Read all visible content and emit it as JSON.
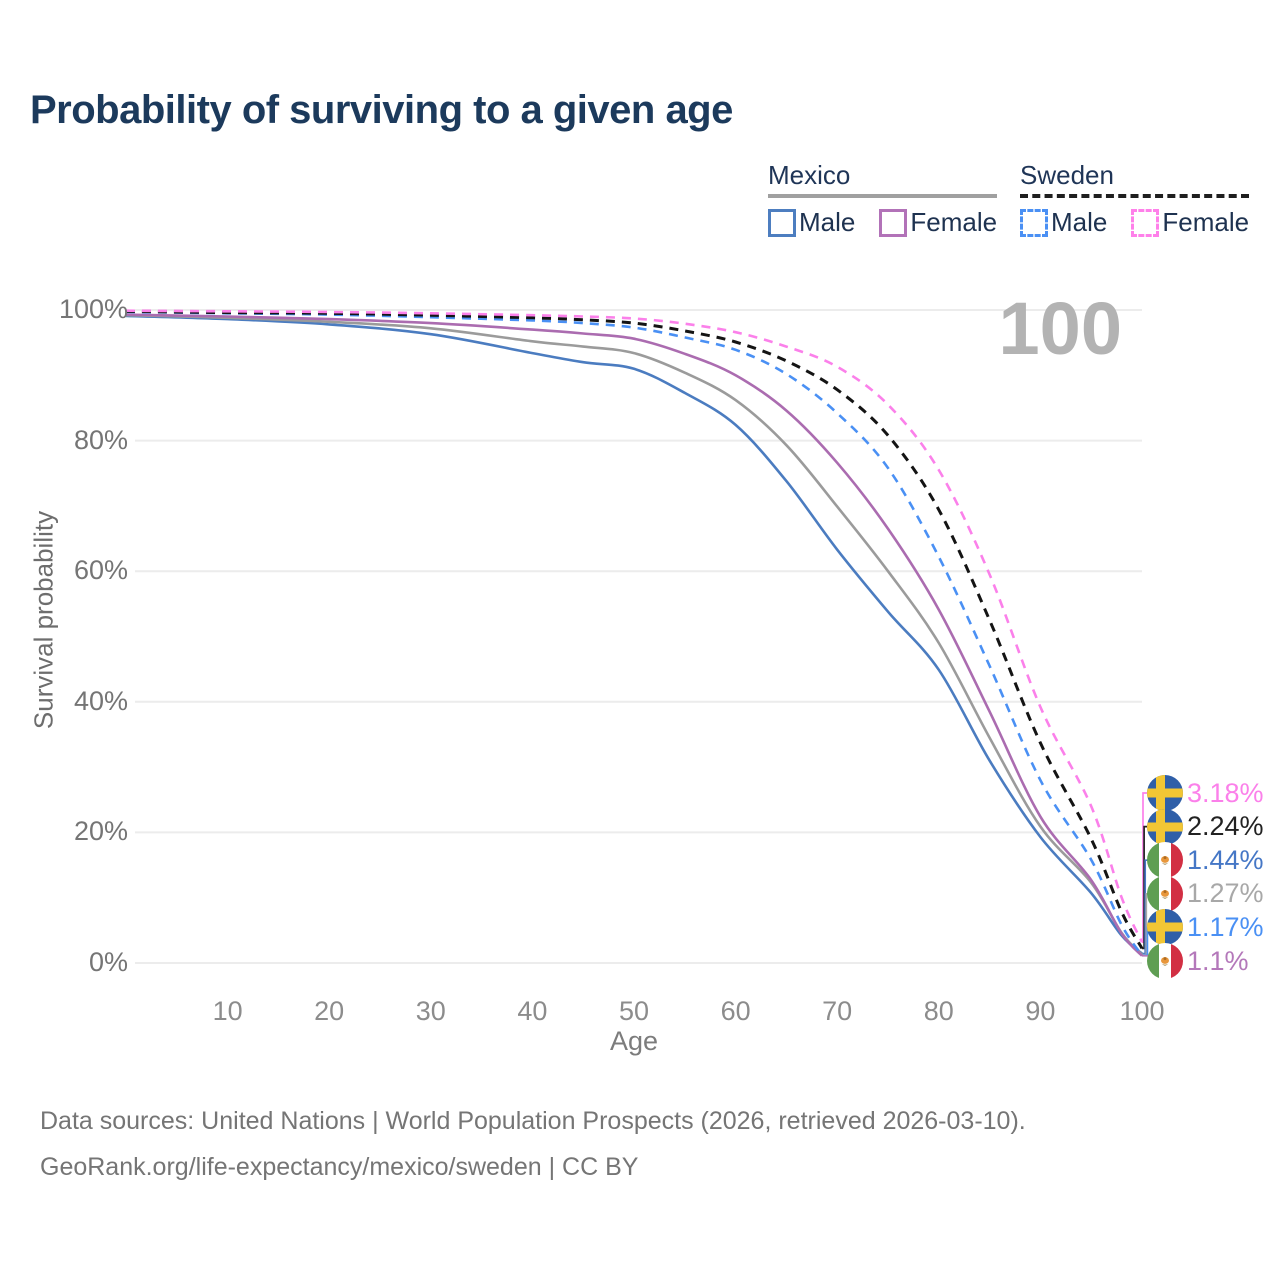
{
  "title": "Probability of surviving to a given age",
  "legend": {
    "groups": [
      {
        "label": "Mexico",
        "underline_style": "solid",
        "underline_color": "#a0a0a0",
        "items": [
          {
            "label": "Male",
            "color": "#4d7ec0",
            "dash": false
          },
          {
            "label": "Female",
            "color": "#b272b8",
            "dash": false
          }
        ]
      },
      {
        "label": "Sweden",
        "underline_style": "dashed",
        "underline_color": "#1f1f1f",
        "items": [
          {
            "label": "Male",
            "color": "#4a90f4",
            "dash": true
          },
          {
            "label": "Female",
            "color": "#ff80ea",
            "dash": true
          }
        ]
      }
    ]
  },
  "chart_data": {
    "type": "line",
    "title": "Probability of surviving to a given age",
    "xlabel": "Age",
    "ylabel": "Survival probability",
    "xlim": [
      0,
      100
    ],
    "ylim": [
      0,
      100
    ],
    "grid": "horizontal",
    "legend_position": "top-right",
    "hover_age_label": "100",
    "x_ticks": [
      10,
      20,
      30,
      40,
      50,
      60,
      70,
      80,
      90,
      100
    ],
    "y_ticks": [
      {
        "value": 0,
        "label": "0%"
      },
      {
        "value": 20,
        "label": "20%"
      },
      {
        "value": 40,
        "label": "40%"
      },
      {
        "value": 60,
        "label": "60%"
      },
      {
        "value": 80,
        "label": "80%"
      },
      {
        "value": 100,
        "label": "100%"
      }
    ],
    "ages": [
      0,
      10,
      20,
      30,
      40,
      45,
      50,
      55,
      60,
      65,
      70,
      75,
      80,
      85,
      90,
      95,
      98,
      100
    ],
    "series": [
      {
        "id": "mexico-male",
        "name": "Mexico Male",
        "color": "#4b7cc0",
        "dash": false,
        "values": [
          99.1,
          98.6,
          97.8,
          96.3,
          93.4,
          92.0,
          91.0,
          87.3,
          82.4,
          73.8,
          63.3,
          53.8,
          44.9,
          31.0,
          19.3,
          10.7,
          4.2,
          1.44
        ],
        "end_value_label": "1.44%"
      },
      {
        "id": "mexico-both",
        "name": "Mexico",
        "color": "#9b9b9b",
        "dash": false,
        "values": [
          99.2,
          98.8,
          98.2,
          97.2,
          95.2,
          94.4,
          93.4,
          90.4,
          86.2,
          79.3,
          69.9,
          60.0,
          49.0,
          34.5,
          20.9,
          12.3,
          4.6,
          1.27
        ],
        "end_value_label": "1.27%"
      },
      {
        "id": "mexico-female",
        "name": "Mexico Female",
        "color": "#ab6cb0",
        "dash": false,
        "values": [
          99.3,
          99.0,
          98.6,
          98.0,
          97.0,
          96.4,
          95.6,
          93.3,
          90.0,
          84.6,
          76.6,
          66.5,
          54.1,
          38.5,
          22.4,
          12.7,
          4.5,
          1.1
        ],
        "end_value_label": "1.1%"
      },
      {
        "id": "sweden-male",
        "name": "Sweden Male",
        "color": "#4a90f4",
        "dash": true,
        "values": [
          99.7,
          99.5,
          99.3,
          98.9,
          98.4,
          98.0,
          97.3,
          95.8,
          93.9,
          90.2,
          84.2,
          75.8,
          62.2,
          45.5,
          28.0,
          15.8,
          5.8,
          1.17
        ],
        "end_value_label": "1.17%"
      },
      {
        "id": "sweden-both",
        "name": "Sweden",
        "color": "#141414",
        "dash": true,
        "values": [
          99.8,
          99.6,
          99.5,
          99.2,
          98.8,
          98.5,
          98.0,
          96.8,
          95.1,
          92.2,
          87.8,
          80.8,
          69.4,
          52.5,
          33.7,
          19.0,
          7.8,
          2.24
        ],
        "end_value_label": "2.24%"
      },
      {
        "id": "sweden-female",
        "name": "Sweden Female",
        "color": "#fb80ea",
        "dash": true,
        "values": [
          99.9,
          99.8,
          99.7,
          99.5,
          99.2,
          99.0,
          98.7,
          97.9,
          96.6,
          94.4,
          91.3,
          85.5,
          75.5,
          59.5,
          39.2,
          24.0,
          10.0,
          3.18
        ],
        "end_value_label": "3.18%"
      }
    ],
    "end_labels": [
      {
        "flag": "sweden",
        "text": "3.18%",
        "color": "#fb80ea",
        "series": "sweden-female"
      },
      {
        "flag": "sweden",
        "text": "2.24%",
        "color": "#222222",
        "series": "sweden-both"
      },
      {
        "flag": "mexico",
        "text": "1.44%",
        "color": "#4577c6",
        "series": "mexico-male"
      },
      {
        "flag": "mexico",
        "text": "1.27%",
        "color": "#a8a8a8",
        "series": "mexico-both"
      },
      {
        "flag": "sweden",
        "text": "1.17%",
        "color": "#4a90f4",
        "series": "sweden-male"
      },
      {
        "flag": "mexico",
        "text": "1.1%",
        "color": "#b478ba",
        "series": "mexico-female"
      }
    ]
  },
  "footer": {
    "line1": "Data sources: United Nations | World Population Prospects (2026, retrieved 2026-03-10).",
    "line2": "GeoRank.org/life-expectancy/mexico/sweden | CC BY"
  }
}
